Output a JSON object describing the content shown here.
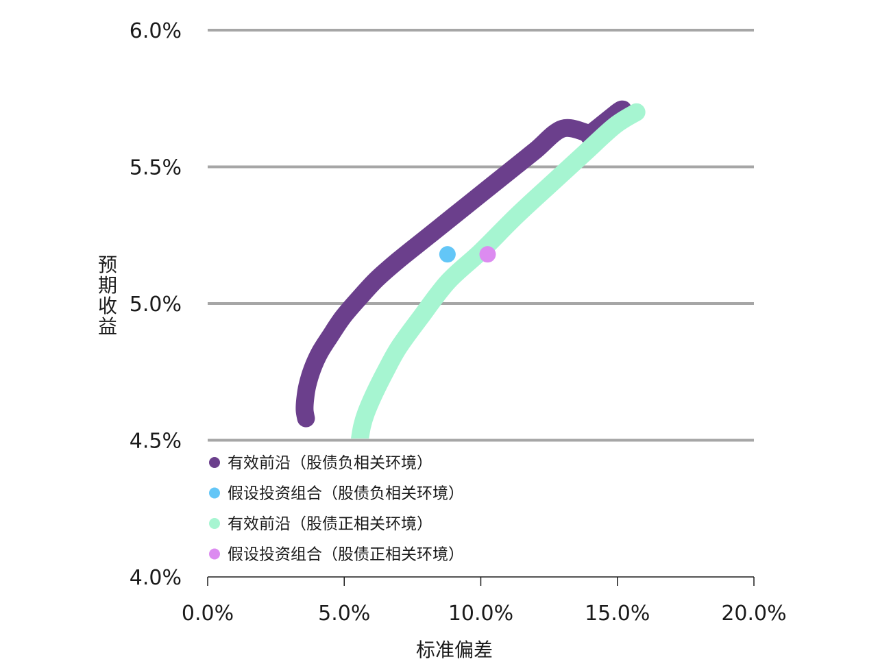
{
  "chart_data": {
    "type": "line",
    "xlabel": "标准偏差",
    "ylabel": "预期收益",
    "xlim": [
      0,
      0.2
    ],
    "ylim": [
      0.04,
      0.06
    ],
    "x_ticks": [
      "0.0%",
      "5.0%",
      "10.0%",
      "15.0%",
      "20.0%"
    ],
    "y_ticks": [
      "4.0%",
      "4.5%",
      "5.0%",
      "5.5%",
      "6.0%"
    ],
    "grid": "horizontal",
    "legend_position": "bottom-left",
    "series": [
      {
        "name": "有效前沿（股债负相关环境）",
        "kind": "line",
        "color": "#6b3f8c",
        "points": [
          [
            0.036,
            0.0458
          ],
          [
            0.0355,
            0.0461
          ],
          [
            0.0357,
            0.0465
          ],
          [
            0.0365,
            0.047
          ],
          [
            0.0383,
            0.0476
          ],
          [
            0.041,
            0.0482
          ],
          [
            0.0448,
            0.0488
          ],
          [
            0.0495,
            0.0495
          ],
          [
            0.0555,
            0.0502
          ],
          [
            0.062,
            0.0509
          ],
          [
            0.07,
            0.0516
          ],
          [
            0.08,
            0.0524
          ],
          [
            0.09,
            0.0532
          ],
          [
            0.1,
            0.054
          ],
          [
            0.11,
            0.0548
          ],
          [
            0.12,
            0.0556
          ],
          [
            0.13,
            0.0564
          ],
          [
            0.14,
            0.0562
          ],
          [
            0.14,
            0.0562
          ],
          [
            0.15,
            0.057
          ],
          [
            0.152,
            0.0571
          ]
        ]
      },
      {
        "name": "假设投资组合（股债负相关环境）",
        "kind": "point",
        "color": "#63c6f7",
        "points": [
          [
            0.0878,
            0.0518
          ]
        ]
      },
      {
        "name": "有效前沿（股债正相关环境）",
        "kind": "line",
        "color": "#a6f5d1",
        "points": [
          [
            0.0555,
            0.0449
          ],
          [
            0.0565,
            0.0455
          ],
          [
            0.058,
            0.046
          ],
          [
            0.061,
            0.0467
          ],
          [
            0.065,
            0.0475
          ],
          [
            0.07,
            0.0484
          ],
          [
            0.078,
            0.0495
          ],
          [
            0.088,
            0.0508
          ],
          [
            0.1,
            0.0519
          ],
          [
            0.113,
            0.0532
          ],
          [
            0.126,
            0.0544
          ],
          [
            0.138,
            0.0555
          ],
          [
            0.149,
            0.0565
          ],
          [
            0.157,
            0.057
          ]
        ]
      },
      {
        "name": "假设投资组合（股债正相关环境）",
        "kind": "point",
        "color": "#dc8bf0",
        "points": [
          [
            0.1025,
            0.0518
          ]
        ]
      }
    ]
  }
}
